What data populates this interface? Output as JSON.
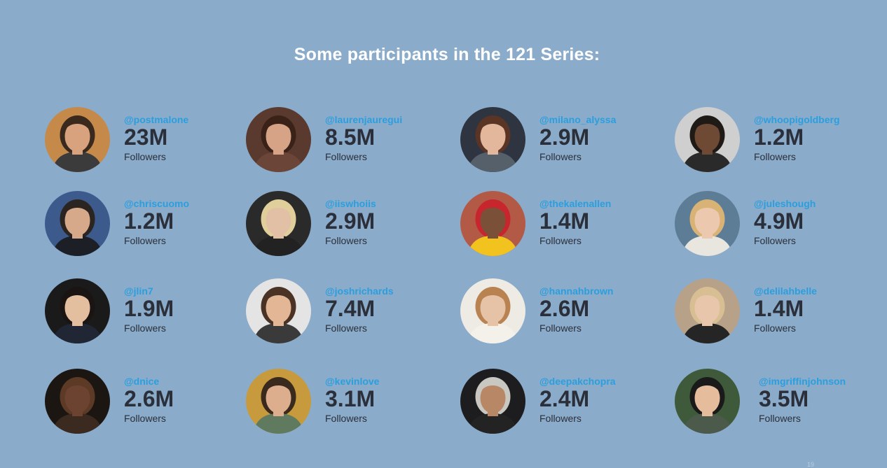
{
  "title": "Some participants in the 121 Series:",
  "followers_label": "Followers",
  "page_number": "19",
  "colors": {
    "background": "#8aabc9",
    "handle": "#2a9fe0",
    "count": "#2b2f3a"
  },
  "participants": [
    {
      "handle": "@postmalone",
      "count": "23M",
      "bg": "#c58a4a",
      "skin": "#d9a27e",
      "hair": "#3a2a1e",
      "shirt": "#3b3b3b"
    },
    {
      "handle": "@laurenjauregui",
      "count": "8.5M",
      "bg": "#5a3a2e",
      "skin": "#d6a386",
      "hair": "#3a2218",
      "shirt": "#6b4638"
    },
    {
      "handle": "@milano_alyssa",
      "count": "2.9M",
      "bg": "#2e3440",
      "skin": "#e3b79b",
      "hair": "#5a3526",
      "shirt": "#55606a"
    },
    {
      "handle": "@whoopigoldberg",
      "count": "1.2M",
      "bg": "#cfcfcf",
      "skin": "#6e4a35",
      "hair": "#1f1a16",
      "shirt": "#2a2a2a"
    },
    {
      "handle": "@chriscuomo",
      "count": "1.2M",
      "bg": "#3d5a8c",
      "skin": "#d6a98a",
      "hair": "#2b2521",
      "shirt": "#1c1f26"
    },
    {
      "handle": "@iiswhoiis",
      "count": "2.9M",
      "bg": "#2a2a2a",
      "skin": "#e2c0a6",
      "hair": "#e1cf9b",
      "shirt": "#222222"
    },
    {
      "handle": "@thekalenallen",
      "count": "1.4M",
      "bg": "#b25a45",
      "skin": "#7a5038",
      "hair": "#c8262e",
      "shirt": "#f2c21f"
    },
    {
      "handle": "@juleshough",
      "count": "4.9M",
      "bg": "#5d7d96",
      "skin": "#ecc8ae",
      "hair": "#d9b276",
      "shirt": "#e9e6e0"
    },
    {
      "handle": "@jlin7",
      "count": "1.9M",
      "bg": "#1a1a1a",
      "skin": "#e4bf9f",
      "hair": "#1a1512",
      "shirt": "#202633"
    },
    {
      "handle": "@joshrichards",
      "count": "7.4M",
      "bg": "#e4e4e4",
      "skin": "#e3b795",
      "hair": "#4a3224",
      "shirt": "#3a3a3a"
    },
    {
      "handle": "@hannahbrown",
      "count": "2.6M",
      "bg": "#eeeae4",
      "skin": "#e6c2a6",
      "hair": "#b98251",
      "shirt": "#f4f1ea"
    },
    {
      "handle": "@delilahbelle",
      "count": "1.4M",
      "bg": "#b8a189",
      "skin": "#e8c6ac",
      "hair": "#d8bf93",
      "shirt": "#252525"
    },
    {
      "handle": "@dnice",
      "count": "2.6M",
      "bg": "#1c1612",
      "skin": "#6b4330",
      "hair": "#5c3a26",
      "shirt": "#3a2a20"
    },
    {
      "handle": "@kevinlove",
      "count": "3.1M",
      "bg": "#c79a3d",
      "skin": "#dcae8e",
      "hair": "#3a2a1e",
      "shirt": "#5f7a5e"
    },
    {
      "handle": "@deepakchopra",
      "count": "2.4M",
      "bg": "#1d1d1f",
      "skin": "#b88766",
      "hair": "#c9c7c2",
      "shirt": "#232323"
    },
    {
      "handle": "@imgriffinjohnson",
      "count": "3.5M",
      "bg": "#3e5a3a",
      "skin": "#e5bd9d",
      "hair": "#1a1a1a",
      "shirt": "#4b5a4a"
    }
  ]
}
